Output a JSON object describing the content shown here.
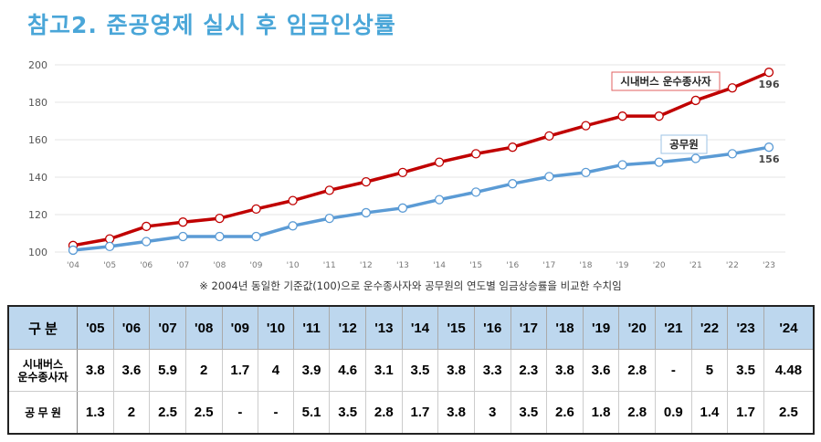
{
  "title": "참고2. 준공영제 실시 후 임금인상률",
  "note": "※ 2004년 동일한 기준값(100)으로 운수종사자와 공무원의 연도별 임금상승률을 비교한 수치임",
  "chart_data": {
    "type": "line",
    "x": [
      "'04",
      "'05",
      "'06",
      "'07",
      "'08",
      "'09",
      "'10",
      "'11",
      "'12",
      "'13",
      "'14",
      "'15",
      "'16",
      "'17",
      "'18",
      "'19",
      "'20",
      "'21",
      "'22",
      "'23"
    ],
    "ylim": [
      100,
      200
    ],
    "yticks": [
      100,
      120,
      140,
      160,
      180,
      200
    ],
    "grid": true,
    "series": [
      {
        "name": "시내버스 운수종사자",
        "color": "#c00000",
        "end_label": "196",
        "values": [
          103.5,
          107,
          113.7,
          116,
          118,
          123,
          127.5,
          133,
          137.5,
          142.5,
          148,
          152.5,
          156,
          162,
          167.5,
          172.6,
          172.6,
          181,
          187.7,
          196
        ]
      },
      {
        "name": "공무원",
        "color": "#5b9bd5",
        "end_label": "156",
        "values": [
          101,
          103,
          105.6,
          108.3,
          108.3,
          108.3,
          114,
          118,
          121,
          123.5,
          128,
          132,
          136.5,
          140.3,
          142.5,
          146.6,
          148,
          150,
          152.5,
          156
        ]
      }
    ]
  },
  "table": {
    "header": [
      "구 분",
      "'05",
      "'06",
      "'07",
      "'08",
      "'09",
      "'10",
      "'11",
      "'12",
      "'13",
      "'14",
      "'15",
      "'16",
      "'17",
      "'18",
      "'19",
      "'20",
      "'21",
      "'22",
      "'23",
      "'24"
    ],
    "rows": [
      [
        "시내버스\n운수종사자",
        "3.8",
        "3.6",
        "5.9",
        "2",
        "1.7",
        "4",
        "3.9",
        "4.6",
        "3.1",
        "3.5",
        "3.8",
        "3.3",
        "2.3",
        "3.8",
        "3.6",
        "2.8",
        "-",
        "5",
        "3.5",
        "4.48"
      ],
      [
        "공 무 원",
        "1.3",
        "2",
        "2.5",
        "2.5",
        "-",
        "-",
        "5.1",
        "3.5",
        "2.8",
        "1.7",
        "3.8",
        "3",
        "3.5",
        "2.6",
        "1.8",
        "2.8",
        "0.9",
        "1.4",
        "1.7",
        "2.5"
      ]
    ]
  }
}
